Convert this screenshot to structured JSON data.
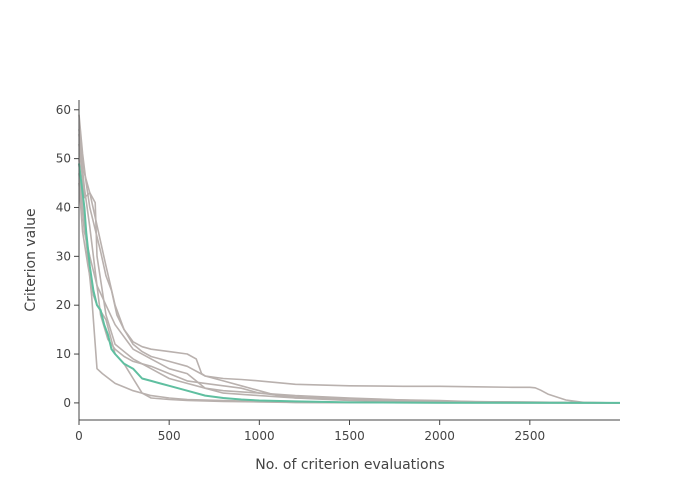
{
  "chart_data": {
    "type": "line",
    "xlabel": "No. of criterion evaluations",
    "ylabel": "Criterion value",
    "xlim": [
      0,
      3000
    ],
    "ylim": [
      -3.5,
      62
    ],
    "xticks": [
      0,
      500,
      1000,
      1500,
      2000,
      2500
    ],
    "yticks": [
      0,
      10,
      20,
      30,
      40,
      50,
      60
    ],
    "grid": false,
    "legend": "none",
    "colors": {
      "background": "#ba9eb9",
      "highlight": "#5fbfa0"
    },
    "series": [
      {
        "role": "background",
        "color": "#b9b1ae",
        "x": [
          0,
          20,
          40,
          60,
          80,
          100,
          120,
          150,
          180,
          210,
          250,
          300,
          350,
          400,
          500,
          600,
          700,
          800,
          900,
          1000,
          1200,
          1500,
          1800,
          2000,
          2200,
          2400,
          2500,
          2530,
          2560,
          2600,
          2700,
          2800,
          3000
        ],
        "y": [
          59,
          51,
          45,
          40,
          37,
          34,
          31,
          26,
          23,
          18,
          15,
          12,
          10.5,
          9.5,
          8.5,
          7.5,
          5.5,
          5,
          4.8,
          4.5,
          3.8,
          3.5,
          3.4,
          3.4,
          3.3,
          3.2,
          3.2,
          3.1,
          2.6,
          1.8,
          0.6,
          0.1,
          0.0
        ]
      },
      {
        "role": "background",
        "color": "#b9b1ae",
        "x": [
          0,
          30,
          60,
          90,
          120,
          150,
          200,
          250,
          300,
          350,
          400,
          500,
          600,
          650,
          680,
          700,
          800,
          900,
          1000,
          1100,
          1200,
          1500,
          2000,
          3000
        ],
        "y": [
          56,
          47,
          43,
          38,
          33,
          28,
          20,
          15,
          12.5,
          11.5,
          11,
          10.5,
          10,
          9,
          6,
          5.5,
          4.5,
          3.5,
          2.5,
          1.5,
          1.0,
          0.5,
          0.2,
          0.0
        ]
      },
      {
        "role": "background",
        "color": "#b9b1ae",
        "x": [
          0,
          30,
          60,
          90,
          100,
          150,
          200,
          300,
          400,
          500,
          600,
          700,
          800,
          1000,
          1200,
          1500,
          2000,
          2300,
          3000
        ],
        "y": [
          53,
          42,
          43,
          41,
          30,
          18,
          12,
          9,
          7,
          5,
          4,
          3,
          2,
          1.5,
          1,
          0.8,
          0.5,
          0.1,
          0.0
        ]
      },
      {
        "role": "background",
        "color": "#b9b1ae",
        "x": [
          0,
          20,
          40,
          70,
          90,
          100,
          130,
          200,
          300,
          400,
          500,
          600,
          800,
          1000,
          1200,
          1500,
          3000
        ],
        "y": [
          50,
          41,
          33,
          22,
          12,
          7,
          6,
          4,
          2.5,
          1.5,
          1,
          0.7,
          0.5,
          0.3,
          0.1,
          0.05,
          0.0
        ]
      },
      {
        "role": "background",
        "color": "#b9b1ae",
        "x": [
          0,
          30,
          60,
          100,
          150,
          200,
          300,
          400,
          500,
          600,
          700,
          800,
          1000,
          1200,
          1500,
          2000,
          3000
        ],
        "y": [
          47,
          35,
          30,
          24,
          20,
          16,
          11,
          9,
          7,
          6,
          3,
          2.5,
          2,
          1.5,
          1.0,
          0.3,
          0.0
        ]
      },
      {
        "role": "background",
        "color": "#b9b1ae",
        "x": [
          0,
          20,
          50,
          80,
          100,
          150,
          200,
          250,
          300,
          350,
          400,
          500,
          600,
          800,
          1000,
          1200,
          1500,
          3000
        ],
        "y": [
          45,
          35,
          28,
          22,
          20,
          17,
          10,
          8,
          5,
          2,
          1,
          0.7,
          0.5,
          0.3,
          0.2,
          0.1,
          0.05,
          0.0
        ]
      },
      {
        "role": "background",
        "color": "#b9b1ae",
        "x": [
          0,
          30,
          60,
          90,
          120,
          160,
          200,
          250,
          300,
          350,
          400,
          500,
          600,
          700,
          800,
          900,
          1000,
          1200,
          1500,
          1800,
          2000,
          3000
        ],
        "y": [
          55,
          44,
          36,
          27,
          18,
          13,
          11,
          9.5,
          8.5,
          8,
          7.5,
          6,
          4.5,
          4,
          3.5,
          3,
          2,
          1.2,
          0.8,
          0.5,
          0.3,
          0.0
        ]
      },
      {
        "role": "highlight",
        "color": "#5fbfa0",
        "x": [
          0,
          10,
          20,
          30,
          40,
          60,
          80,
          100,
          120,
          140,
          160,
          180,
          200,
          250,
          300,
          350,
          400,
          450,
          500,
          600,
          700,
          800,
          900,
          1000,
          1200,
          1500,
          2000,
          3000
        ],
        "y": [
          49,
          46,
          43,
          40,
          35,
          28,
          23,
          20,
          19,
          16,
          14,
          11,
          10,
          8,
          7,
          5,
          4.5,
          4,
          3.5,
          2.5,
          1.5,
          1,
          0.7,
          0.5,
          0.3,
          0.1,
          0.05,
          0.0
        ]
      }
    ]
  }
}
